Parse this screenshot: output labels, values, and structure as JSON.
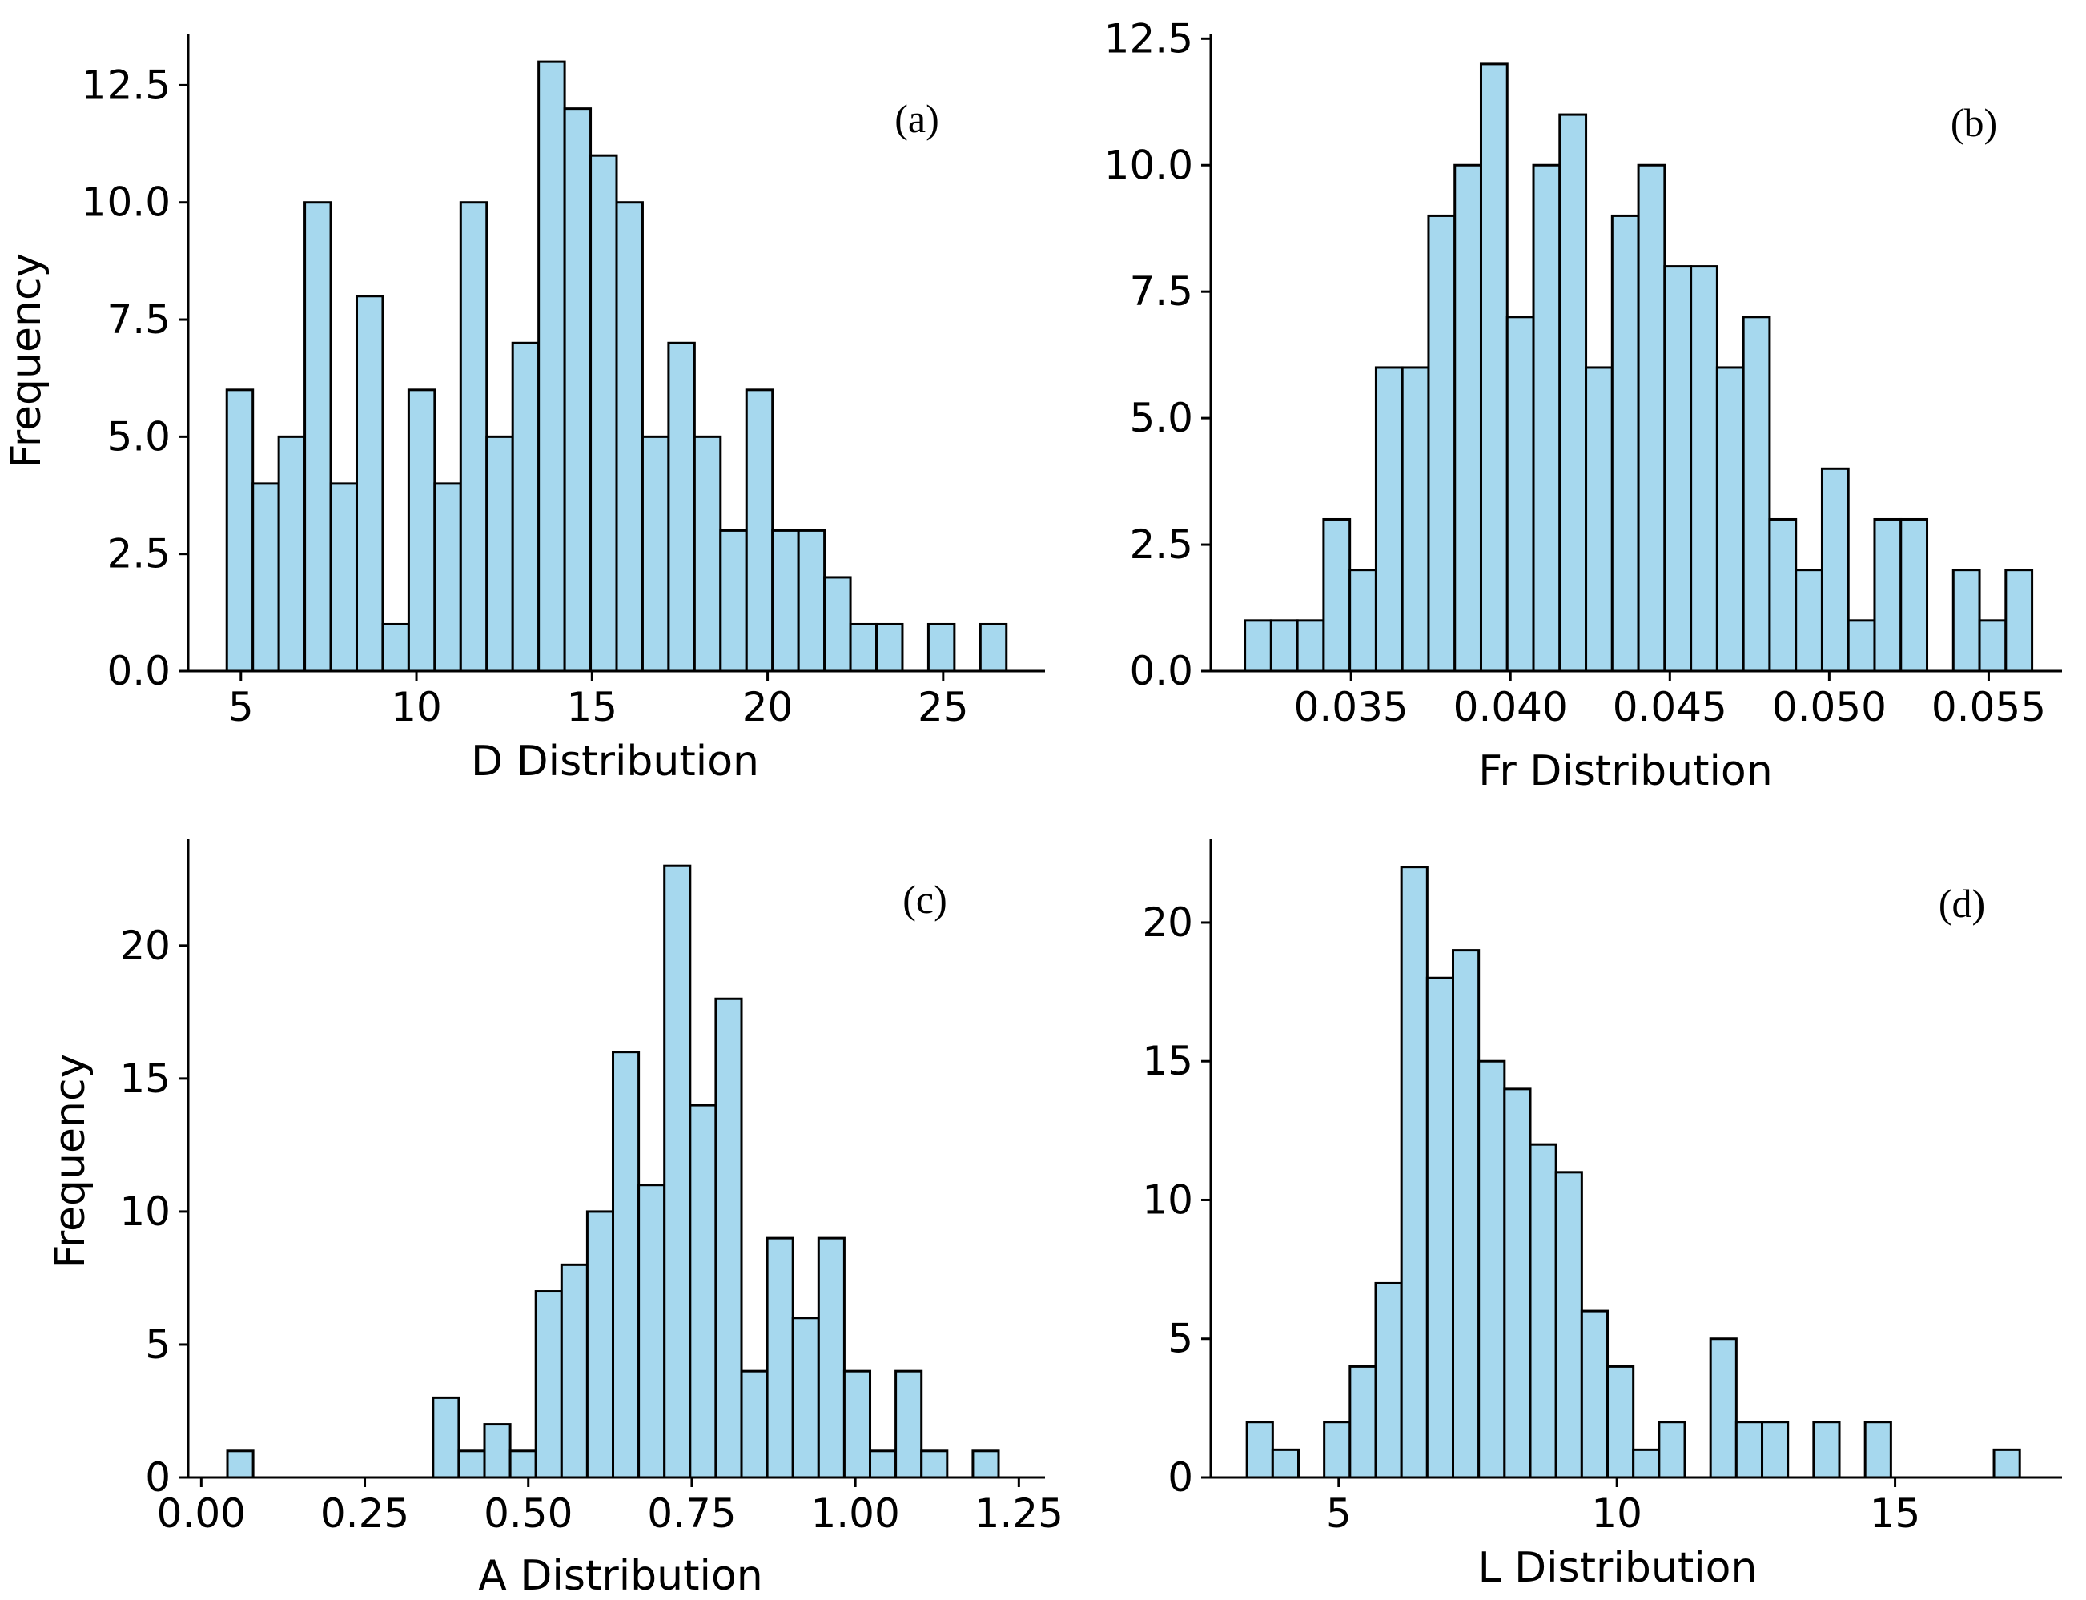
{
  "chart_data": [
    {
      "type": "bar",
      "panel": "(a)",
      "xlabel": "D Distribution",
      "ylabel": "Frequency",
      "xlim": [
        3.5,
        27.9
      ],
      "ylim": [
        0,
        13.6
      ],
      "xticks": [
        5,
        10,
        15,
        20,
        25
      ],
      "xtick_labels": [
        "5",
        "10",
        "15",
        "20",
        "25"
      ],
      "yticks": [
        0,
        2.5,
        5,
        7.5,
        10,
        12.5
      ],
      "ytick_labels": [
        "0.0",
        "2.5",
        "5.0",
        "7.5",
        "10.0",
        "12.5"
      ],
      "bin_start": 4.6,
      "bin_width": 0.74,
      "values": [
        6,
        4,
        5,
        10,
        4,
        8,
        1,
        6,
        4,
        10,
        5,
        7,
        13,
        12,
        11,
        10,
        5,
        7,
        5,
        3,
        6,
        3,
        3,
        2,
        1,
        1,
        0,
        1,
        0,
        1
      ]
    },
    {
      "type": "bar",
      "panel": "(b)",
      "xlabel": "Fr Distribution",
      "ylabel": "",
      "xlim": [
        0.0306,
        0.0573
      ],
      "ylim": [
        0,
        12.6
      ],
      "xticks": [
        0.035,
        0.04,
        0.045,
        0.05,
        0.055
      ],
      "xtick_labels": [
        "0.035",
        "0.040",
        "0.045",
        "0.050",
        "0.055"
      ],
      "yticks": [
        0,
        2.5,
        5,
        7.5,
        10,
        12.5
      ],
      "ytick_labels": [
        "0.0",
        "2.5",
        "5.0",
        "7.5",
        "10.0",
        "12.5"
      ],
      "bin_start": 0.03167,
      "bin_width": 0.000823,
      "values": [
        1,
        1,
        1,
        3,
        2,
        6,
        6,
        9,
        10,
        12,
        7,
        10,
        11,
        6,
        9,
        10,
        8,
        8,
        6,
        7,
        3,
        2,
        4,
        1,
        3,
        3,
        0,
        2,
        1,
        2
      ]
    },
    {
      "type": "bar",
      "panel": "(c)",
      "xlabel": "A Distribution",
      "ylabel": "Frequency",
      "xlim": [
        -0.02,
        1.29
      ],
      "ylim": [
        0,
        24
      ],
      "xticks": [
        0,
        0.25,
        0.5,
        0.75,
        1,
        1.25
      ],
      "xtick_labels": [
        "0.00",
        "0.25",
        "0.50",
        "0.75",
        "1.00",
        "1.25"
      ],
      "yticks": [
        0,
        5,
        10,
        15,
        20
      ],
      "ytick_labels": [
        "0",
        "5",
        "10",
        "15",
        "20"
      ],
      "bin_start": 0.04,
      "bin_width": 0.0393,
      "values": [
        1,
        0,
        0,
        0,
        0,
        0,
        0,
        0,
        3,
        1,
        2,
        1,
        7,
        8,
        10,
        16,
        11,
        23,
        14,
        18,
        4,
        9,
        6,
        9,
        4,
        1,
        4,
        1,
        0,
        1
      ]
    },
    {
      "type": "bar",
      "panel": "(d)",
      "xlabel": "L Distribution",
      "ylabel": "",
      "xlim": [
        2.7,
        18.0
      ],
      "ylim": [
        0,
        23
      ],
      "xticks": [
        5,
        10,
        15
      ],
      "xtick_labels": [
        "5",
        "10",
        "15"
      ],
      "yticks": [
        0,
        5,
        10,
        15,
        20
      ],
      "ytick_labels": [
        "0",
        "5",
        "10",
        "15",
        "20"
      ],
      "bin_start": 3.35,
      "bin_width": 0.463,
      "values": [
        2,
        1,
        0,
        2,
        4,
        7,
        22,
        18,
        19,
        15,
        14,
        12,
        11,
        6,
        4,
        1,
        2,
        0,
        5,
        2,
        2,
        0,
        2,
        0,
        2,
        0,
        0,
        0,
        0,
        1
      ]
    }
  ]
}
